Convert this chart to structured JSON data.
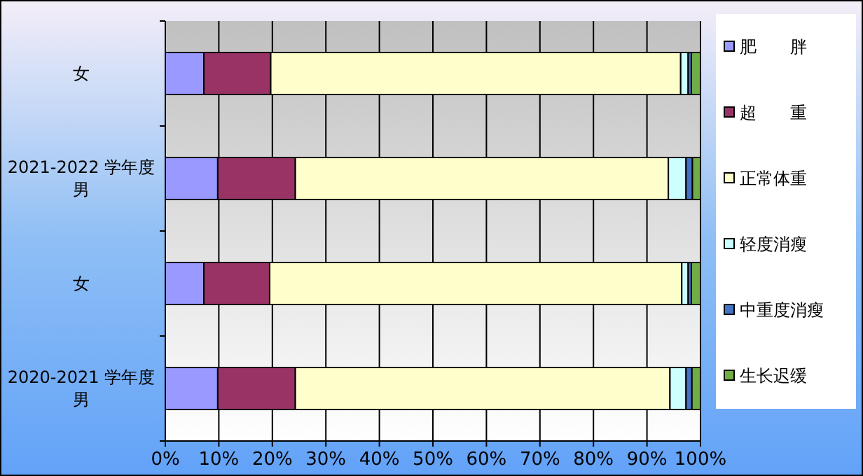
{
  "chart_data": {
    "type": "bar",
    "orientation": "horizontal",
    "stacked": true,
    "categories": [
      "女",
      "2021-2022 学年度男",
      "女",
      "2020-2021 学年度男"
    ],
    "series": [
      {
        "name": "肥　　胖",
        "color": "#9999ff",
        "values": [
          7.2,
          9.8,
          7.2,
          9.8
        ]
      },
      {
        "name": "超　　重",
        "color": "#993366",
        "values": [
          12.5,
          14.5,
          12.3,
          14.5
        ]
      },
      {
        "name": "正常体重",
        "color": "#ffffcc",
        "values": [
          76.6,
          69.7,
          77.0,
          70.0
        ]
      },
      {
        "name": "轻度消瘦",
        "color": "#ccffff",
        "values": [
          1.4,
          3.3,
          1.2,
          3.0
        ]
      },
      {
        "name": "中重度消瘦",
        "color": "#4472c4",
        "values": [
          0.6,
          1.2,
          0.6,
          1.1
        ]
      },
      {
        "name": "生长迟缓",
        "color": "#70ad47",
        "values": [
          1.7,
          1.5,
          1.7,
          1.6
        ]
      }
    ],
    "xlim": [
      0,
      100
    ],
    "xticks": [
      {
        "value": 0,
        "label": "0%"
      },
      {
        "value": 10,
        "label": "10%"
      },
      {
        "value": 20,
        "label": "20%"
      },
      {
        "value": 30,
        "label": "30%"
      },
      {
        "value": 40,
        "label": "40%"
      },
      {
        "value": 50,
        "label": "50%"
      },
      {
        "value": 60,
        "label": "60%"
      },
      {
        "value": 70,
        "label": "70%"
      },
      {
        "value": 80,
        "label": "80%"
      },
      {
        "value": 90,
        "label": "90%"
      },
      {
        "value": 100,
        "label": "100%"
      }
    ],
    "grid": "x",
    "legend": "right"
  }
}
